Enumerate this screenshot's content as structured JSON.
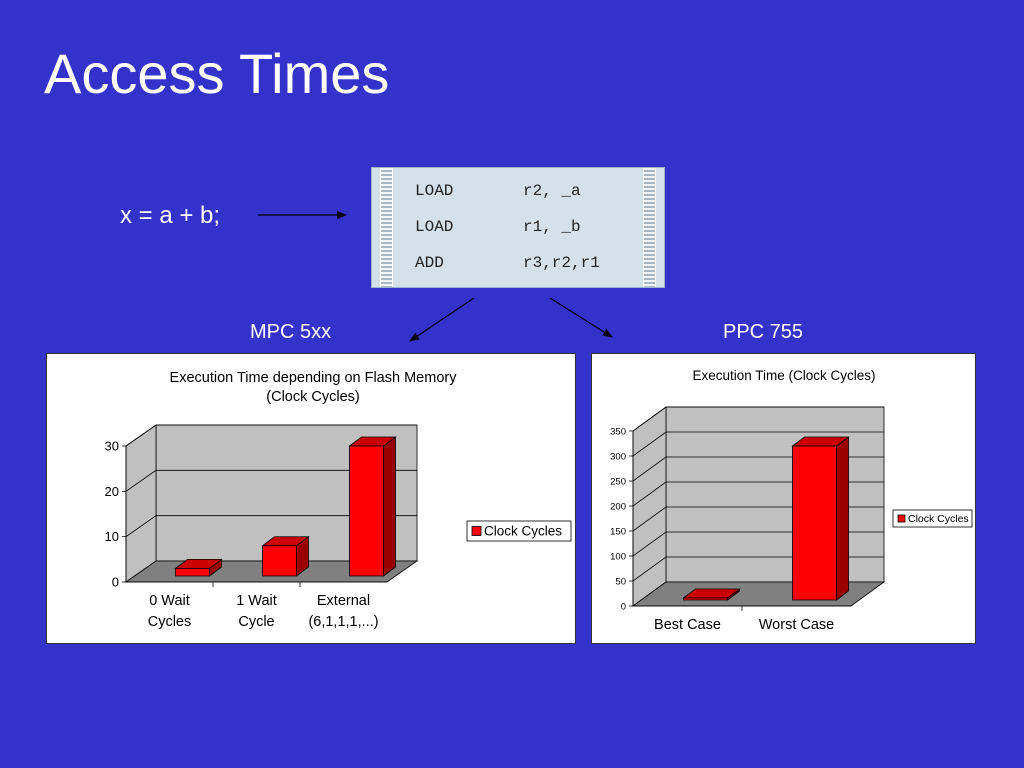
{
  "slide": {
    "title": "Access Times",
    "expression": "x = a + b;",
    "left_label": "MPC 5xx",
    "right_label": "PPC 755"
  },
  "code": {
    "lines": [
      {
        "op": "LOAD",
        "args": "r2, _a"
      },
      {
        "op": "LOAD",
        "args": "r1, _b"
      },
      {
        "op": "ADD",
        "args": "r3,r2,r1"
      }
    ]
  },
  "colors": {
    "background": "#3333cc",
    "bar": "#ff0000",
    "bar_dark": "#990000",
    "wall": "#c0c0c0",
    "floor": "#808080"
  },
  "chart_data": [
    {
      "type": "bar",
      "title": "Execution Time depending on Flash Memory (Clock Cycles)",
      "title_lines": [
        "Execution Time depending on Flash Memory",
        "(Clock Cycles)"
      ],
      "categories": [
        "0 Wait Cycles",
        "1 Wait Cycle",
        "External (6,1,1,1,...)"
      ],
      "category_lines": [
        [
          "0 Wait",
          "Cycles"
        ],
        [
          "1 Wait",
          "Cycle"
        ],
        [
          "External",
          "(6,1,1,1,...)"
        ]
      ],
      "series": [
        {
          "name": "Clock Cycles",
          "values": [
            3,
            8,
            30
          ]
        }
      ],
      "ylim": [
        0,
        30
      ],
      "yticks": [
        0,
        10,
        20,
        30
      ],
      "grid": true,
      "legend": "right",
      "style": "3d"
    },
    {
      "type": "bar",
      "title": "Execution Time (Clock Cycles)",
      "title_lines": [
        "Execution Time (Clock Cycles)"
      ],
      "categories": [
        "Best Case",
        "Worst Case"
      ],
      "category_lines": [
        [
          "Best Case"
        ],
        [
          "Worst Case"
        ]
      ],
      "series": [
        {
          "name": "Clock Cycles",
          "values": [
            1,
            320
          ]
        }
      ],
      "ylim": [
        0,
        350
      ],
      "yticks": [
        0,
        50,
        100,
        150,
        200,
        250,
        300,
        350
      ],
      "grid": true,
      "legend": "right",
      "style": "3d"
    }
  ]
}
